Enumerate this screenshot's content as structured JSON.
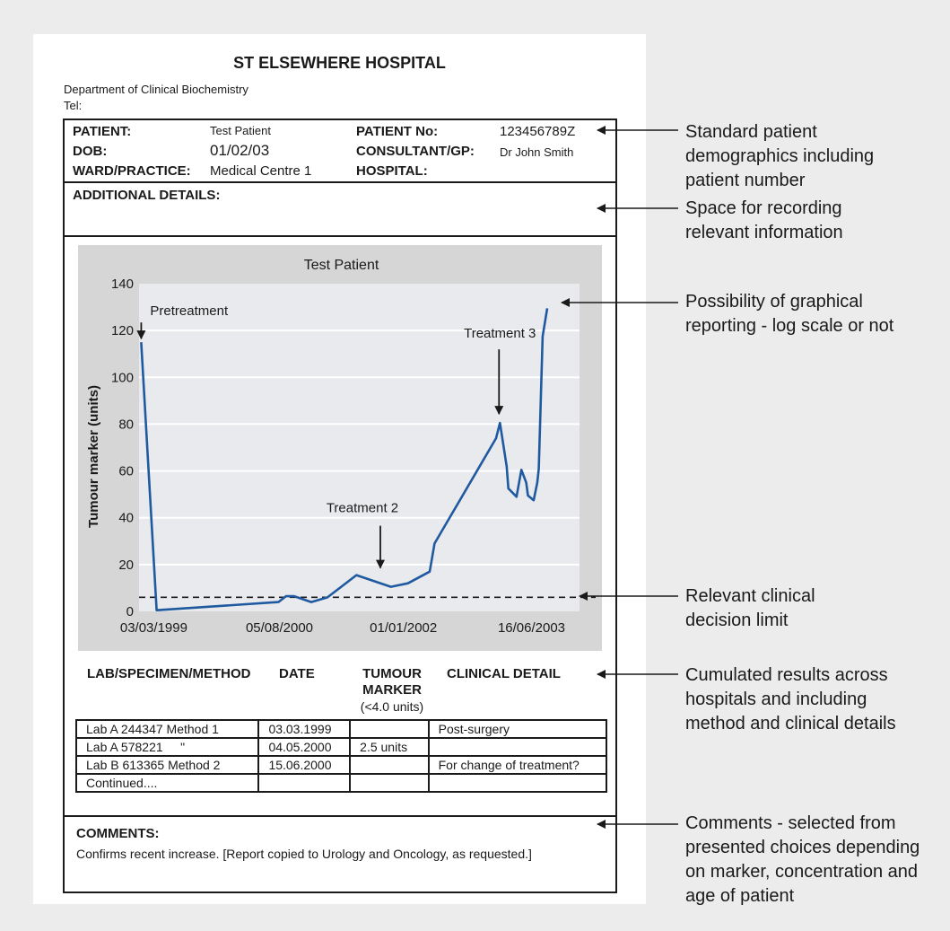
{
  "report": {
    "hospital_name": "ST ELSEWHERE HOSPITAL",
    "department": "Department of Clinical Biochemistry",
    "tel_label": "Tel:",
    "patient_label": "PATIENT:",
    "patient_value": "Test Patient",
    "patient_no_label": "PATIENT No:",
    "patient_no_value": "123456789Z",
    "dob_label": "DOB:",
    "dob_value": "01/02/03",
    "consultant_label": "CONSULTANT/GP:",
    "consultant_value": "Dr John Smith",
    "ward_label": "WARD/PRACTICE:",
    "ward_value": "Medical Centre 1",
    "hospital_label": "HOSPITAL:",
    "additional_label": "ADDITIONAL DETAILS:"
  },
  "chart_data": {
    "type": "line",
    "title": "Test Patient",
    "xlabel": "",
    "ylabel": "Tumour marker (units)",
    "ylim": [
      0,
      140
    ],
    "yticks": [
      0,
      20,
      40,
      60,
      80,
      100,
      120,
      140
    ],
    "xlim": [
      "1999-01-01",
      "2004-01-01"
    ],
    "xticks": [
      {
        "date": "1999-03-03",
        "label": "03/03/1999"
      },
      {
        "date": "2000-08-05",
        "label": "05/08/2000"
      },
      {
        "date": "2002-01-01",
        "label": "01/01/2002"
      },
      {
        "date": "2003-06-16",
        "label": "16/06/2003"
      }
    ],
    "grid": true,
    "decision_limit": 6,
    "series": [
      {
        "name": "",
        "color": "#1f5aa0",
        "points": [
          [
            "1999-01-10",
            115
          ],
          [
            "1999-03-15",
            0.5
          ],
          [
            "2000-08-01",
            4
          ],
          [
            "2000-09-01",
            6.5
          ],
          [
            "2000-10-05",
            6.5
          ],
          [
            "2000-12-15",
            4
          ],
          [
            "2001-02-20",
            6
          ],
          [
            "2001-06-20",
            15.5
          ],
          [
            "2001-11-10",
            10.5
          ],
          [
            "2002-01-20",
            12
          ],
          [
            "2002-04-20",
            17
          ],
          [
            "2002-05-10",
            29
          ],
          [
            "2003-01-20",
            74
          ],
          [
            "2003-02-05",
            80.5
          ],
          [
            "2003-03-05",
            62
          ],
          [
            "2003-03-12",
            52.5
          ],
          [
            "2003-04-15",
            49
          ],
          [
            "2003-05-05",
            60.5
          ],
          [
            "2003-05-25",
            55
          ],
          [
            "2003-06-01",
            49.5
          ],
          [
            "2003-06-25",
            47.5
          ],
          [
            "2003-07-10",
            55
          ],
          [
            "2003-07-16",
            61
          ],
          [
            "2003-08-01",
            117.5
          ],
          [
            "2003-08-20",
            129.5
          ]
        ]
      }
    ],
    "annotations": [
      {
        "text": "Pretreatment",
        "date": "1999-01-10",
        "value": 115
      },
      {
        "text": "Treatment 2",
        "date": "2001-07-15",
        "value": 15.5
      },
      {
        "text": "Treatment 3",
        "date": "2003-02-05",
        "value": 80.5
      }
    ]
  },
  "results": {
    "col_lab": "LAB/SPECIMEN/METHOD",
    "col_date": "DATE",
    "col_marker_1": "TUMOUR",
    "col_marker_2": "MARKER",
    "col_marker_3": "(<4.0 units)",
    "col_clinical": "CLINICAL DETAIL",
    "rows": [
      {
        "lab": "Lab A 244347 Method 1",
        "date": "03.03.1999",
        "marker": "",
        "clinical": "Post-surgery"
      },
      {
        "lab": "Lab A 578221     \"",
        "date": "04.05.2000",
        "marker": "2.5 units",
        "clinical": ""
      },
      {
        "lab": "Lab B 613365 Method 2",
        "date": "15.06.2000",
        "marker": "",
        "clinical": "For change of treatment?"
      },
      {
        "lab": "Continued....",
        "date": "",
        "marker": "",
        "clinical": ""
      }
    ]
  },
  "comments": {
    "label": "COMMENTS:",
    "text": "Confirms recent increase. [Report copied to Urology and Oncology, as requested.]"
  },
  "callouts": [
    {
      "lines": [
        "Standard patient",
        "demographics including",
        "patient number"
      ]
    },
    {
      "lines": [
        "Space for recording",
        "relevant information"
      ]
    },
    {
      "lines": [
        "Possibility of graphical",
        "reporting - log scale or not"
      ]
    },
    {
      "lines": [
        "Relevant clinical",
        "decision limit"
      ]
    },
    {
      "lines": [
        "Cumulated results across",
        "hospitals and including",
        "method and clinical details"
      ]
    },
    {
      "lines": [
        "Comments - selected from",
        "presented choices depending",
        "on marker, concentration and",
        "age of patient"
      ]
    }
  ]
}
